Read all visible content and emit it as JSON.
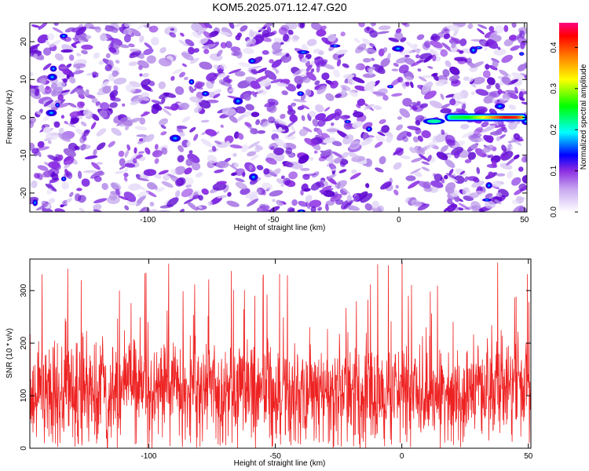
{
  "title": "KOM5.2025.071.12.47.G20",
  "chart_data": [
    {
      "type": "heatmap",
      "xlabel": "Height of straight line (km)",
      "ylabel": "Frequency (Hz)",
      "xlim": [
        -147,
        51
      ],
      "ylim": [
        -25,
        25
      ],
      "xticks": [
        -100,
        -50,
        0,
        50
      ],
      "yticks": [
        -20,
        -10,
        0,
        10,
        20
      ],
      "colorbar": {
        "label": "Normalized spectral amplitude",
        "range": [
          0.0,
          0.46
        ],
        "ticks": [
          0.0,
          0.1,
          0.2,
          0.3,
          0.4
        ],
        "colors": [
          "#ffffff",
          "#c8a8f0",
          "#8a2be2",
          "#0000ff",
          "#00ffff",
          "#00ff00",
          "#ffff00",
          "#ff8000",
          "#ff0000",
          "#ff0080"
        ]
      },
      "features": [
        {
          "name": "streak",
          "x": [
            12,
            50
          ],
          "y": 0,
          "peak_amplitude": 0.45,
          "peak_x": [
            32,
            48
          ]
        }
      ]
    },
    {
      "type": "line",
      "xlabel": "Height of straight line (km)",
      "ylabel": "SNR (10 * v/v)",
      "xlim": [
        -147,
        51
      ],
      "ylim": [
        0,
        360
      ],
      "xticks": [
        -100,
        -50,
        0,
        50
      ],
      "yticks": [
        0,
        100,
        200,
        300
      ],
      "color": "#ee2222",
      "series": [
        {
          "mean": 110,
          "min": 0,
          "max": 355
        }
      ]
    }
  ]
}
